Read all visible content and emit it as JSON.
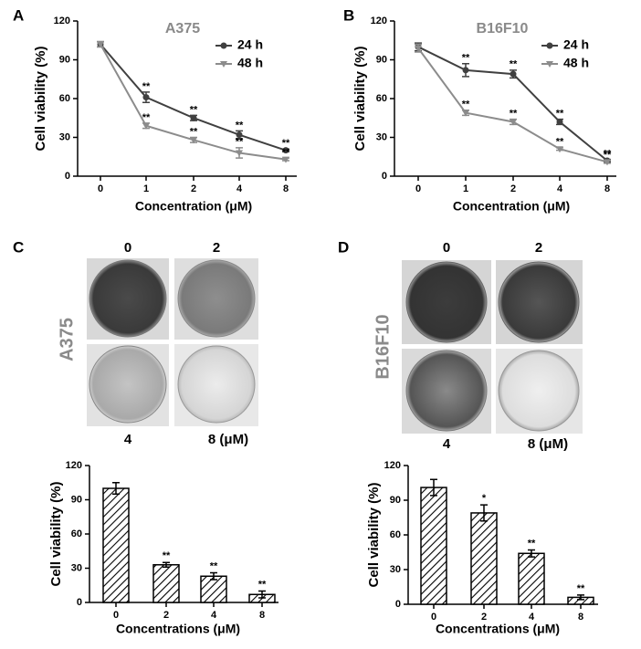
{
  "chart_data": [
    {
      "type": "line",
      "label": "A",
      "title": "A375",
      "y_label": "Cell viability (%)",
      "x_label": "Concentration  (μM)",
      "categories": [
        "0",
        "1",
        "2",
        "4",
        "8"
      ],
      "ylim": [
        0,
        120
      ],
      "yticks": [
        0,
        30,
        60,
        90,
        120
      ],
      "series": [
        {
          "name": "24 h",
          "color": "#404040",
          "marker": "circle",
          "values": [
            102,
            61,
            45,
            32,
            20
          ],
          "errors": [
            2,
            4,
            2,
            3,
            1
          ],
          "marks": [
            null,
            "**",
            "**",
            "**",
            "**"
          ]
        },
        {
          "name": "48 h",
          "color": "#8c8c8c",
          "marker": "triangle",
          "values": [
            102,
            39,
            28,
            18,
            13
          ],
          "errors": [
            2,
            2,
            2,
            4,
            1
          ],
          "marks": [
            null,
            "**",
            "**",
            "**",
            "**"
          ]
        }
      ]
    },
    {
      "type": "line",
      "label": "B",
      "title": "B16F10",
      "y_label": "Cell viability (%)",
      "x_label": "Concentration  (μM)",
      "categories": [
        "0",
        "1",
        "2",
        "4",
        "8"
      ],
      "ylim": [
        0,
        120
      ],
      "yticks": [
        0,
        30,
        60,
        90,
        120
      ],
      "series": [
        {
          "name": "24 h",
          "color": "#404040",
          "marker": "circle",
          "values": [
            100,
            82,
            79,
            42,
            12
          ],
          "errors": [
            3,
            5,
            3,
            2,
            1
          ],
          "marks": [
            null,
            "**",
            "**",
            "**",
            "**"
          ]
        },
        {
          "name": "48 h",
          "color": "#8c8c8c",
          "marker": "triangle",
          "values": [
            99,
            49,
            42,
            21,
            11
          ],
          "errors": [
            3,
            2,
            2,
            1,
            1
          ],
          "marks": [
            null,
            "**",
            "**",
            "**",
            "**"
          ]
        }
      ]
    },
    {
      "type": "bar",
      "label": "C",
      "y_label": "Cell viability (%)",
      "x_label": "Concentrations (μM)",
      "categories": [
        "0",
        "2",
        "4",
        "8"
      ],
      "ylim": [
        0,
        120
      ],
      "yticks": [
        0,
        30,
        60,
        90,
        120
      ],
      "values": [
        100,
        33,
        23,
        7
      ],
      "errors": [
        5,
        2,
        3,
        3
      ],
      "marks": [
        null,
        "**",
        "**",
        "**"
      ]
    },
    {
      "type": "bar",
      "label": "D",
      "y_label": "Cell viability (%)",
      "x_label": "Concentrations (μM)",
      "categories": [
        "0",
        "2",
        "4",
        "8"
      ],
      "ylim": [
        0,
        120
      ],
      "yticks": [
        0,
        30,
        60,
        90,
        120
      ],
      "values": [
        101,
        79,
        44,
        6
      ],
      "errors": [
        7,
        7,
        3,
        2
      ],
      "marks": [
        null,
        "*",
        "**",
        "**"
      ]
    }
  ],
  "images": [
    {
      "cell_line": "A375",
      "wells": [
        "0",
        "2",
        "4",
        "8 (μM)"
      ]
    },
    {
      "cell_line": "B16F10",
      "wells": [
        "0",
        "2",
        "4",
        "8 (μM)"
      ]
    }
  ]
}
